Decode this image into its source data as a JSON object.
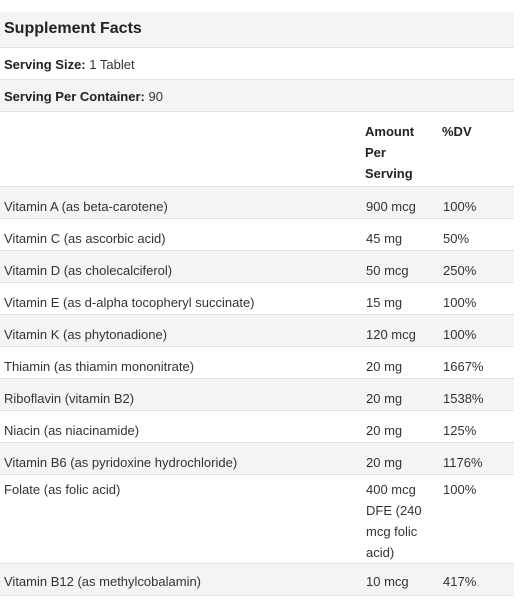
{
  "title": "Supplement Facts",
  "serving_size": {
    "label": "Serving Size:",
    "value": "1 Tablet"
  },
  "servings_per_container": {
    "label": "Serving Per Container:",
    "value": "90"
  },
  "columns": {
    "amount": "Amount Per Serving",
    "dv": "%DV"
  },
  "rows": [
    {
      "name": "Vitamin A (as beta-carotene)",
      "amount": "900 mcg",
      "dv": "100%"
    },
    {
      "name": "Vitamin C (as ascorbic acid)",
      "amount": "45 mg",
      "dv": "50%"
    },
    {
      "name": "Vitamin D (as cholecalciferol)",
      "amount": "50 mcg",
      "dv": "250%"
    },
    {
      "name": "Vitamin E (as d-alpha tocopheryl succinate)",
      "amount": "15 mg",
      "dv": "100%"
    },
    {
      "name": "Vitamin K (as phytonadione)",
      "amount": "120 mcg",
      "dv": "100%"
    },
    {
      "name": "Thiamin (as thiamin mononitrate)",
      "amount": "20 mg",
      "dv": "1667%"
    },
    {
      "name": "Riboflavin (vitamin B2)",
      "amount": "20 mg",
      "dv": "1538%"
    },
    {
      "name": "Niacin (as niacinamide)",
      "amount": "20 mg",
      "dv": "125%"
    },
    {
      "name": "Vitamin B6 (as pyridoxine hydrochloride)",
      "amount": "20 mg",
      "dv": "1176%"
    },
    {
      "name": "Folate (as folic acid)",
      "amount": "400 mcg DFE (240 mcg folic acid)",
      "dv": "100%"
    },
    {
      "name": "Vitamin B12 (as methylcobalamin)",
      "amount": "10 mcg",
      "dv": "417%"
    }
  ]
}
